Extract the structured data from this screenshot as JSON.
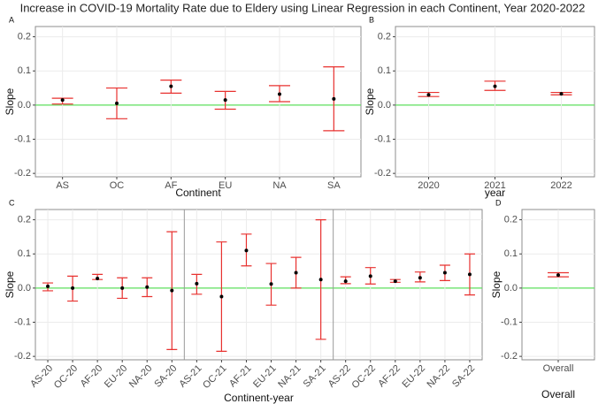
{
  "title": "Increase in COVID-19 Mortality Rate due to Eldery using Linear Regression in each Continent, Year 2020-2022",
  "chart_data": [
    {
      "type": "errorbar",
      "label": "A",
      "x_label": "Continent",
      "y_label": "Slope",
      "categories": [
        "AS",
        "OC",
        "AF",
        "EU",
        "NA",
        "SA"
      ],
      "values": [
        0.015,
        0.005,
        0.055,
        0.015,
        0.032,
        0.018
      ],
      "lower": [
        0.003,
        -0.04,
        0.035,
        -0.012,
        0.01,
        -0.075
      ],
      "upper": [
        0.02,
        0.05,
        0.073,
        0.04,
        0.057,
        0.112
      ],
      "ylim": [
        -0.21,
        0.23
      ],
      "yticks": [
        -0.2,
        -0.1,
        {
          "value": 0,
          "label": "0.0"
        },
        0.1,
        0.2
      ],
      "grid": true,
      "point_color": "#000000",
      "error_color": "#e8312f",
      "reference_line_color": "#5ee05e"
    },
    {
      "type": "errorbar",
      "label": "B",
      "x_label": "year",
      "y_label": "Slope",
      "categories": [
        "2020",
        "2021",
        "2022"
      ],
      "values": [
        0.03,
        0.055,
        0.033
      ],
      "lower": [
        0.025,
        0.043,
        0.03
      ],
      "upper": [
        0.037,
        0.07,
        0.037
      ],
      "ylim": [
        -0.21,
        0.23
      ],
      "yticks": [
        -0.2,
        -0.1,
        {
          "value": 0,
          "label": "0.0"
        },
        0.1,
        0.2
      ],
      "grid": true,
      "point_color": "#000000",
      "error_color": "#e8312f",
      "reference_line_color": "#5ee05e"
    },
    {
      "type": "errorbar",
      "label": "C",
      "x_label": "Continent-year",
      "y_label": "Slope",
      "categories": [
        "AS-20",
        "OC-20",
        "AF-20",
        "EU-20",
        "NA-20",
        "SA-20",
        "AS-21",
        "OC-21",
        "AF-21",
        "EU-21",
        "NA-21",
        "SA-21",
        "AS-22",
        "OC-22",
        "AF-22",
        "EU-22",
        "NA-22",
        "SA-22"
      ],
      "values": [
        0.005,
        0,
        0.028,
        0,
        0.003,
        -0.007,
        0.013,
        -0.025,
        0.11,
        0.012,
        0.045,
        0.025,
        0.02,
        0.035,
        0.02,
        0.03,
        0.045,
        0.04
      ],
      "lower": [
        -0.008,
        -0.038,
        0.025,
        -0.03,
        -0.025,
        -0.18,
        -0.018,
        -0.185,
        0.065,
        -0.05,
        0,
        -0.15,
        0.013,
        0.012,
        0.017,
        0.018,
        0.022,
        -0.02
      ],
      "upper": [
        0.015,
        0.035,
        0.04,
        0.03,
        0.03,
        0.165,
        0.04,
        0.135,
        0.158,
        0.072,
        0.09,
        0.2,
        0.033,
        0.06,
        0.025,
        0.047,
        0.067,
        0.1
      ],
      "ylim": [
        -0.21,
        0.23
      ],
      "yticks": [
        -0.2,
        -0.1,
        {
          "value": 0,
          "label": "0.0"
        },
        0.1,
        0.2
      ],
      "grid": true,
      "point_color": "#000000",
      "error_color": "#e8312f",
      "reference_line_color": "#5ee05e"
    },
    {
      "type": "errorbar",
      "label": "D",
      "x_label": "Overall",
      "y_label": "Slope",
      "categories": [
        "Overall"
      ],
      "values": [
        0.038
      ],
      "lower": [
        0.033
      ],
      "upper": [
        0.045
      ],
      "ylim": [
        -0.21,
        0.23
      ],
      "yticks": [
        -0.2,
        -0.1,
        {
          "value": 0,
          "label": "0.0"
        },
        0.1,
        0.2
      ],
      "grid": true,
      "point_color": "#000000",
      "error_color": "#e8312f",
      "reference_line_color": "#5ee05e"
    }
  ]
}
